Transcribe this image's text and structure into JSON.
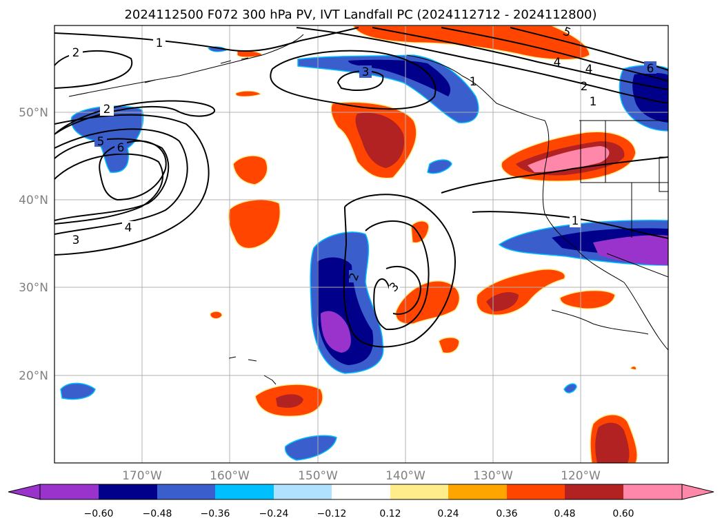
{
  "title": "2024112500 F072 300 hPa PV, IVT Landfall PC (2024112712 - 2024112800)",
  "map": {
    "lat_labels": [
      "50°N",
      "40°N",
      "30°N",
      "20°N"
    ],
    "lon_labels": [
      "170°W",
      "160°W",
      "150°W",
      "140°W",
      "130°W",
      "120°W"
    ],
    "contour_labels": [
      "2",
      "1",
      "2",
      "5",
      "6",
      "4",
      "3",
      "3",
      "1",
      "2",
      "3",
      "4",
      "5",
      "6",
      "4",
      "2",
      "1",
      "1"
    ]
  },
  "colorbar": {
    "colors": [
      "#9933cc",
      "#00008b",
      "#3a5fcd",
      "#00bfff",
      "#b0e2ff",
      "#ffffff",
      "#ffec8b",
      "#ffa500",
      "#ff4500",
      "#b22222",
      "#ff88aa"
    ],
    "ticks": [
      "−0.60",
      "−0.48",
      "−0.36",
      "−0.24",
      "−0.12",
      "0.12",
      "0.24",
      "0.36",
      "0.48",
      "0.60"
    ]
  }
}
